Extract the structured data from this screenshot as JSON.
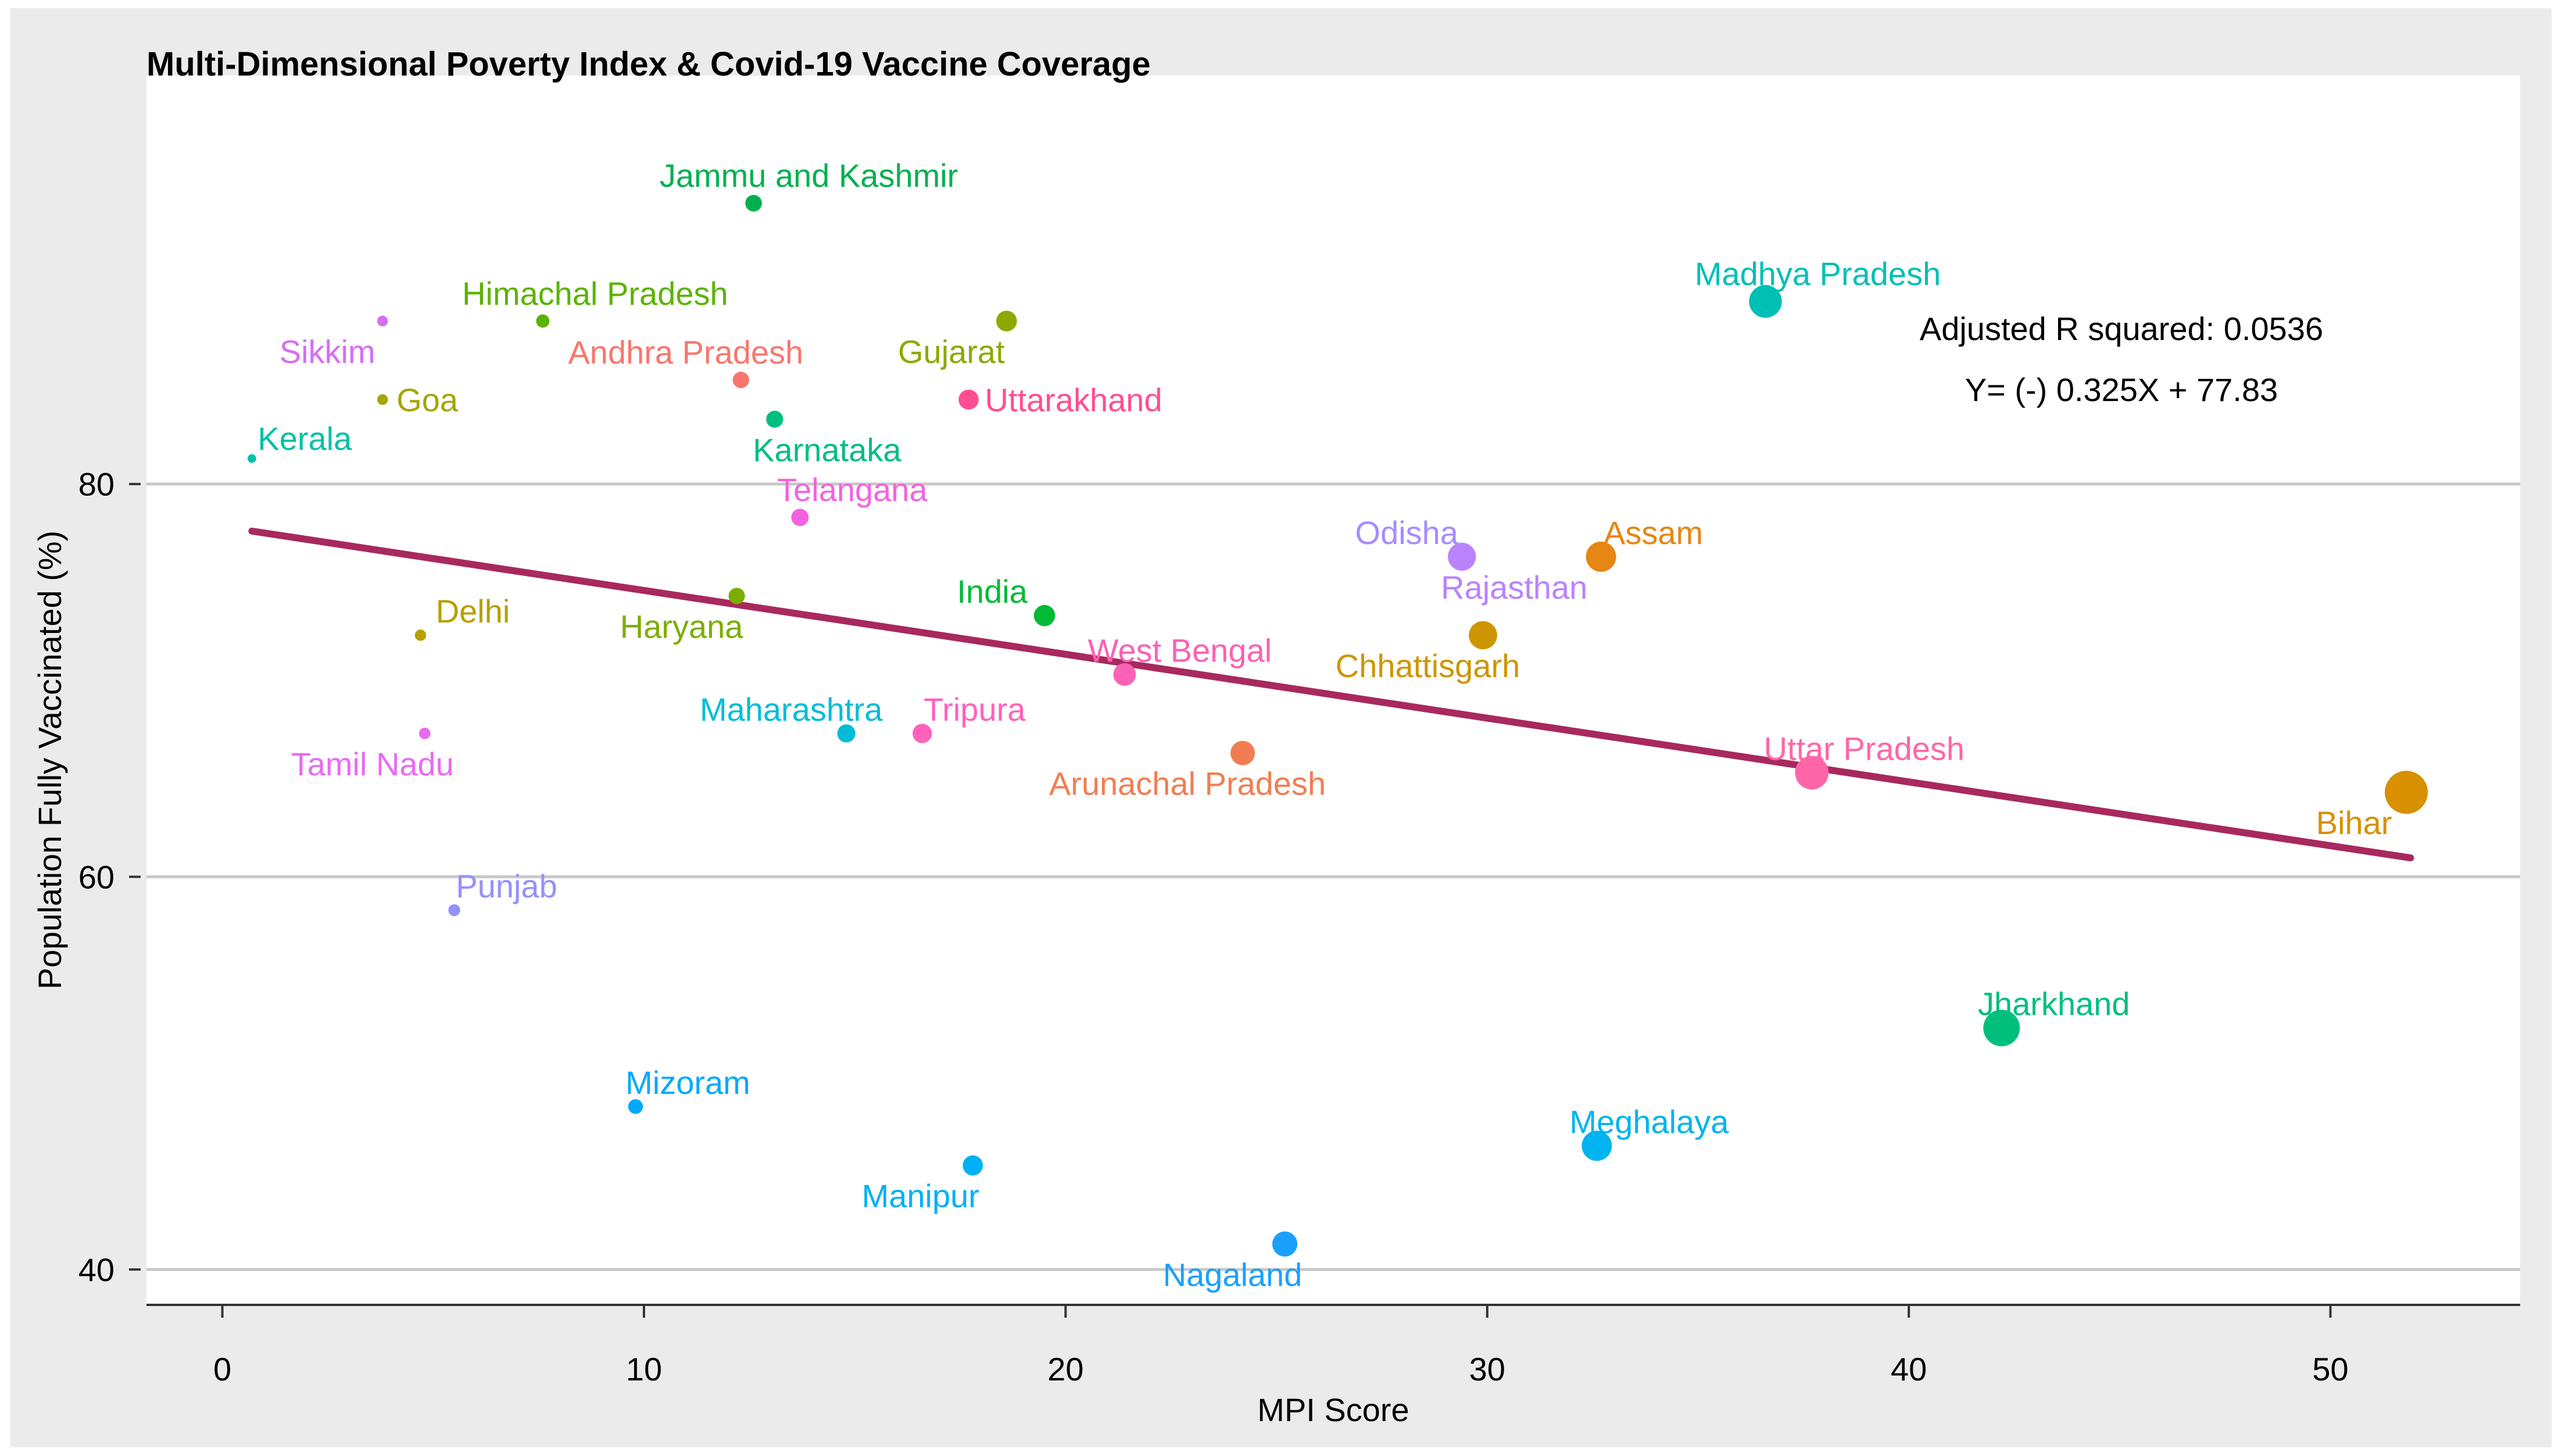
{
  "chart_data": {
    "type": "scatter",
    "title": "Multi-Dimensional Poverty Index & Covid-19 Vaccine Coverage",
    "xlabel": "MPI Score",
    "ylabel": "Population Fully Vaccinated (%)",
    "xlim": [
      -1.8,
      54.5
    ],
    "ylim": [
      38.2,
      100.8
    ],
    "x_ticks": [
      0,
      10,
      20,
      30,
      40,
      50
    ],
    "y_ticks": [
      40,
      60,
      80
    ],
    "grid": true,
    "annotations": {
      "r_squared": "Adjusted R squared:  0.0536",
      "equation": "Y= (-) 0.325X + 77.83"
    },
    "trend_line": {
      "slope": -0.325,
      "intercept": 77.83,
      "x_range": [
        0.7,
        51.9
      ],
      "color": "#A8295E"
    },
    "points": [
      {
        "name": "Jammu and Kashmir",
        "x": 12.6,
        "y": 94.3,
        "color": "#00B050"
      },
      {
        "name": "Himachal Pradesh",
        "x": 7.6,
        "y": 88.3,
        "color": "#5BB300"
      },
      {
        "name": "Sikkim",
        "x": 3.8,
        "y": 88.3,
        "color": "#D76CF5"
      },
      {
        "name": "Andhra Pradesh",
        "x": 12.3,
        "y": 85.3,
        "color": "#F8766D"
      },
      {
        "name": "Gujarat",
        "x": 18.6,
        "y": 88.3,
        "color": "#8FA800"
      },
      {
        "name": "Goa",
        "x": 3.8,
        "y": 84.3,
        "color": "#A3A500"
      },
      {
        "name": "Uttarakhand",
        "x": 17.7,
        "y": 84.3,
        "color": "#FF4E91"
      },
      {
        "name": "Karnataka",
        "x": 13.1,
        "y": 83.3,
        "color": "#00BE7D"
      },
      {
        "name": "Kerala",
        "x": 0.7,
        "y": 81.3,
        "color": "#00C1A7"
      },
      {
        "name": "Madhya Pradesh",
        "x": 36.6,
        "y": 89.3,
        "color": "#00BFB5"
      },
      {
        "name": "Telangana",
        "x": 13.7,
        "y": 78.3,
        "color": "#F462E0"
      },
      {
        "name": "Odisha",
        "x": 29.4,
        "y": 76.3,
        "color": "#A78BFF"
      },
      {
        "name": "Rajasthan",
        "x": 29.4,
        "y": 76.3,
        "color": "#B983FF"
      },
      {
        "name": "Assam",
        "x": 32.7,
        "y": 76.3,
        "color": "#E68613"
      },
      {
        "name": "Haryana",
        "x": 12.2,
        "y": 74.3,
        "color": "#7CAE00"
      },
      {
        "name": "India",
        "x": 19.5,
        "y": 73.3,
        "color": "#00BA38"
      },
      {
        "name": "Delhi",
        "x": 4.7,
        "y": 72.3,
        "color": "#B79F00"
      },
      {
        "name": "Chhattisgarh",
        "x": 29.9,
        "y": 72.3,
        "color": "#CD9600"
      },
      {
        "name": "West Bengal",
        "x": 21.4,
        "y": 70.3,
        "color": "#FB61B4"
      },
      {
        "name": "Maharashtra",
        "x": 14.8,
        "y": 67.3,
        "color": "#00BCD8"
      },
      {
        "name": "Tripura",
        "x": 16.6,
        "y": 67.3,
        "color": "#FF62BC"
      },
      {
        "name": "Tamil Nadu",
        "x": 4.8,
        "y": 67.3,
        "color": "#E76BF3"
      },
      {
        "name": "Arunachal Pradesh",
        "x": 24.2,
        "y": 66.3,
        "color": "#F27D52"
      },
      {
        "name": "Uttar Pradesh",
        "x": 37.7,
        "y": 65.3,
        "color": "#FF66A8"
      },
      {
        "name": "Bihar",
        "x": 51.8,
        "y": 64.3,
        "color": "#D89000"
      },
      {
        "name": "Punjab",
        "x": 5.5,
        "y": 58.3,
        "color": "#9590FF"
      },
      {
        "name": "Jharkhand",
        "x": 42.2,
        "y": 52.3,
        "color": "#00BF7D"
      },
      {
        "name": "Mizoram",
        "x": 9.8,
        "y": 48.3,
        "color": "#00A9FF"
      },
      {
        "name": "Meghalaya",
        "x": 32.6,
        "y": 46.3,
        "color": "#00B4EF"
      },
      {
        "name": "Manipur",
        "x": 17.8,
        "y": 45.3,
        "color": "#00B0F6"
      },
      {
        "name": "Nagaland",
        "x": 25.2,
        "y": 41.3,
        "color": "#1AA0FF"
      }
    ]
  }
}
